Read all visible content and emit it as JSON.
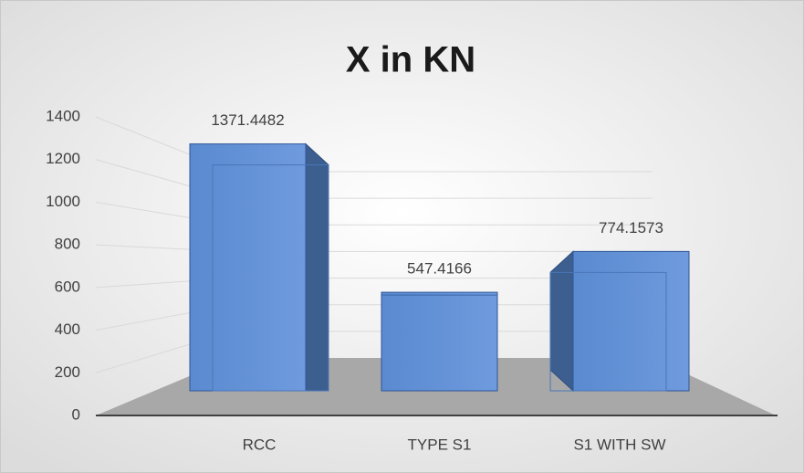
{
  "chart_data": {
    "type": "bar3d",
    "title": "X in KN",
    "categories": [
      "RCC",
      "TYPE S1",
      "S1 WITH SW"
    ],
    "values": [
      1371.4482,
      547.4166,
      774.1573
    ],
    "color": "#5b8fd4",
    "ylim": [
      0,
      1400
    ],
    "yticks": [
      0,
      200,
      400,
      600,
      800,
      1000,
      1200,
      1400
    ],
    "grid": true
  }
}
